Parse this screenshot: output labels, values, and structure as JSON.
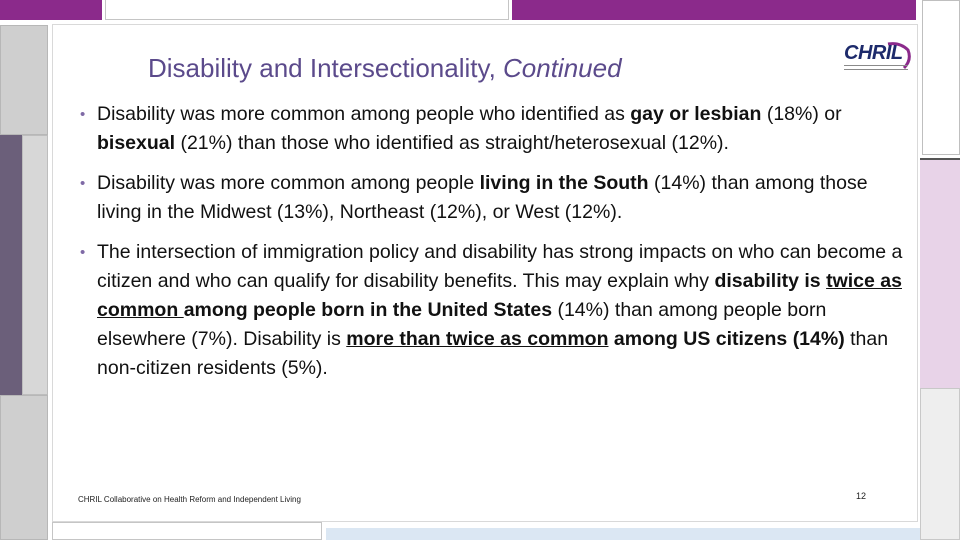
{
  "slide": {
    "title": "Disability and Intersectionality, ",
    "title_italic": "Continued",
    "logo_text": "CHRIL",
    "footer": "CHRIL Collaborative on Health Reform and Independent Living",
    "page_number": "12"
  },
  "bullets": [
    {
      "parts": [
        "Disability was more common among people who identified as ",
        "gay or lesbian",
        " (18%) or ",
        "bisexual",
        " (21%) than those who identified as straight/heterosexual (12%)."
      ]
    },
    {
      "parts": [
        "Disability was more common among people ",
        "living in the South",
        " (14%) than among those living in the Midwest (13%), Northeast (12%), or West (12%)."
      ]
    },
    {
      "parts": [
        "The intersection of immigration policy and disability has strong impacts on who can become a citizen and who can qualify for disability benefits. This may explain why ",
        "disability is ",
        "twice as common ",
        "among people born in the United States",
        " (14%) than among people born elsewhere (7%). Disability is ",
        "more than twice as common",
        " ",
        "among US citizens (14%)",
        " than non-citizen residents (5%)."
      ]
    }
  ],
  "colors": {
    "title": "#5b4a8b",
    "accent_purple": "#8b2a8b",
    "bullet_mark": "#7f6aa6",
    "logo": "#1d2a6b"
  }
}
